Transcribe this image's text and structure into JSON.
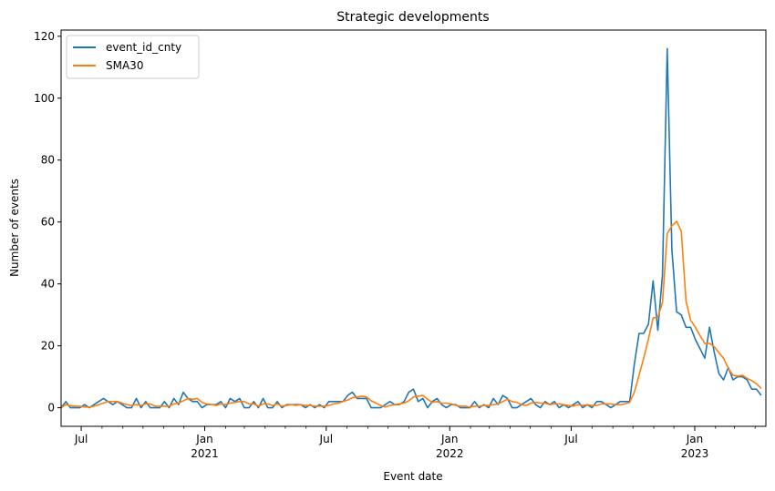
{
  "chart_data": {
    "type": "line",
    "title": "Strategic developments",
    "xlabel": "Event date",
    "ylabel": "Number of events",
    "x_range": [
      "2020-06-01",
      "2023-04-17"
    ],
    "ylim": [
      -6,
      122
    ],
    "yticks": [
      0,
      20,
      40,
      60,
      80,
      100,
      120
    ],
    "xticks": [
      {
        "date": "2020-07-01",
        "label": "Jul",
        "sub": ""
      },
      {
        "date": "2021-01-01",
        "label": "Jan",
        "sub": "2021"
      },
      {
        "date": "2021-07-01",
        "label": "Jul",
        "sub": ""
      },
      {
        "date": "2022-01-01",
        "label": "Jan",
        "sub": "2022"
      },
      {
        "date": "2022-07-01",
        "label": "Jul",
        "sub": ""
      },
      {
        "date": "2023-01-01",
        "label": "Jan",
        "sub": "2023"
      }
    ],
    "minor_ticks": [
      "2020-08-01",
      "2020-09-01",
      "2020-10-01",
      "2020-11-01",
      "2020-12-01",
      "2021-02-01",
      "2021-03-01",
      "2021-04-01",
      "2021-05-01",
      "2021-06-01",
      "2021-08-01",
      "2021-09-01",
      "2021-10-01",
      "2021-11-01",
      "2021-12-01",
      "2022-02-01",
      "2022-03-01",
      "2022-04-01",
      "2022-05-01",
      "2022-06-01",
      "2022-08-01",
      "2022-09-01",
      "2022-10-01",
      "2022-11-01",
      "2022-12-01",
      "2023-02-01",
      "2023-03-01",
      "2023-04-01"
    ],
    "grid": false,
    "legend_position": "top-left",
    "series": [
      {
        "name": "event_id_cnty",
        "color": "#1f77b4",
        "points": [
          [
            "2020-06-01",
            0
          ],
          [
            "2020-06-08",
            2
          ],
          [
            "2020-06-15",
            0
          ],
          [
            "2020-06-22",
            0
          ],
          [
            "2020-06-29",
            0
          ],
          [
            "2020-07-06",
            1
          ],
          [
            "2020-07-13",
            0
          ],
          [
            "2020-07-20",
            1
          ],
          [
            "2020-07-27",
            2
          ],
          [
            "2020-08-03",
            3
          ],
          [
            "2020-08-10",
            2
          ],
          [
            "2020-08-17",
            1
          ],
          [
            "2020-08-24",
            2
          ],
          [
            "2020-08-31",
            1
          ],
          [
            "2020-09-07",
            0
          ],
          [
            "2020-09-14",
            0
          ],
          [
            "2020-09-21",
            3
          ],
          [
            "2020-09-28",
            0
          ],
          [
            "2020-10-05",
            2
          ],
          [
            "2020-10-12",
            0
          ],
          [
            "2020-10-19",
            0
          ],
          [
            "2020-10-26",
            0
          ],
          [
            "2020-11-02",
            2
          ],
          [
            "2020-11-09",
            0
          ],
          [
            "2020-11-16",
            3
          ],
          [
            "2020-11-23",
            1
          ],
          [
            "2020-11-30",
            5
          ],
          [
            "2020-12-07",
            3
          ],
          [
            "2020-12-14",
            2
          ],
          [
            "2020-12-21",
            2
          ],
          [
            "2020-12-28",
            0
          ],
          [
            "2021-01-04",
            1
          ],
          [
            "2021-01-11",
            1
          ],
          [
            "2021-01-18",
            1
          ],
          [
            "2021-01-25",
            2
          ],
          [
            "2021-02-01",
            0
          ],
          [
            "2021-02-08",
            3
          ],
          [
            "2021-02-15",
            2
          ],
          [
            "2021-02-22",
            3
          ],
          [
            "2021-03-01",
            0
          ],
          [
            "2021-03-08",
            0
          ],
          [
            "2021-03-15",
            2
          ],
          [
            "2021-03-22",
            0
          ],
          [
            "2021-03-29",
            3
          ],
          [
            "2021-04-05",
            0
          ],
          [
            "2021-04-12",
            0
          ],
          [
            "2021-04-19",
            2
          ],
          [
            "2021-04-26",
            0
          ],
          [
            "2021-05-03",
            1
          ],
          [
            "2021-05-10",
            1
          ],
          [
            "2021-05-17",
            1
          ],
          [
            "2021-05-24",
            1
          ],
          [
            "2021-05-31",
            0
          ],
          [
            "2021-06-07",
            1
          ],
          [
            "2021-06-14",
            0
          ],
          [
            "2021-06-21",
            1
          ],
          [
            "2021-06-28",
            0
          ],
          [
            "2021-07-05",
            2
          ],
          [
            "2021-07-12",
            2
          ],
          [
            "2021-07-19",
            2
          ],
          [
            "2021-07-26",
            2
          ],
          [
            "2021-08-02",
            4
          ],
          [
            "2021-08-09",
            5
          ],
          [
            "2021-08-16",
            3
          ],
          [
            "2021-08-23",
            3
          ],
          [
            "2021-08-30",
            3
          ],
          [
            "2021-09-06",
            0
          ],
          [
            "2021-09-13",
            0
          ],
          [
            "2021-09-20",
            0
          ],
          [
            "2021-09-27",
            1
          ],
          [
            "2021-10-04",
            2
          ],
          [
            "2021-10-11",
            1
          ],
          [
            "2021-10-18",
            1
          ],
          [
            "2021-10-25",
            2
          ],
          [
            "2021-11-01",
            5
          ],
          [
            "2021-11-08",
            6
          ],
          [
            "2021-11-15",
            2
          ],
          [
            "2021-11-22",
            3
          ],
          [
            "2021-11-29",
            0
          ],
          [
            "2021-12-06",
            2
          ],
          [
            "2021-12-13",
            3
          ],
          [
            "2021-12-20",
            1
          ],
          [
            "2021-12-27",
            0
          ],
          [
            "2022-01-03",
            1
          ],
          [
            "2022-01-10",
            1
          ],
          [
            "2022-01-17",
            0
          ],
          [
            "2022-01-24",
            0
          ],
          [
            "2022-01-31",
            0
          ],
          [
            "2022-02-07",
            2
          ],
          [
            "2022-02-14",
            0
          ],
          [
            "2022-02-21",
            1
          ],
          [
            "2022-02-28",
            0
          ],
          [
            "2022-03-07",
            3
          ],
          [
            "2022-03-14",
            1
          ],
          [
            "2022-03-21",
            4
          ],
          [
            "2022-03-28",
            3
          ],
          [
            "2022-04-04",
            0
          ],
          [
            "2022-04-11",
            0
          ],
          [
            "2022-04-18",
            1
          ],
          [
            "2022-04-25",
            2
          ],
          [
            "2022-05-02",
            3
          ],
          [
            "2022-05-09",
            1
          ],
          [
            "2022-05-16",
            0
          ],
          [
            "2022-05-23",
            2
          ],
          [
            "2022-05-30",
            1
          ],
          [
            "2022-06-06",
            2
          ],
          [
            "2022-06-13",
            0
          ],
          [
            "2022-06-20",
            1
          ],
          [
            "2022-06-27",
            0
          ],
          [
            "2022-07-04",
            1
          ],
          [
            "2022-07-11",
            2
          ],
          [
            "2022-07-18",
            0
          ],
          [
            "2022-07-25",
            1
          ],
          [
            "2022-08-01",
            0
          ],
          [
            "2022-08-08",
            2
          ],
          [
            "2022-08-15",
            2
          ],
          [
            "2022-08-22",
            1
          ],
          [
            "2022-08-29",
            0
          ],
          [
            "2022-09-05",
            1
          ],
          [
            "2022-09-12",
            2
          ],
          [
            "2022-09-19",
            2
          ],
          [
            "2022-09-26",
            2
          ],
          [
            "2022-10-03",
            14
          ],
          [
            "2022-10-10",
            24
          ],
          [
            "2022-10-17",
            24
          ],
          [
            "2022-10-24",
            27
          ],
          [
            "2022-10-31",
            41
          ],
          [
            "2022-11-07",
            25
          ],
          [
            "2022-11-14",
            43
          ],
          [
            "2022-11-21",
            116
          ],
          [
            "2022-11-28",
            51
          ],
          [
            "2022-12-05",
            31
          ],
          [
            "2022-12-12",
            30
          ],
          [
            "2022-12-19",
            26
          ],
          [
            "2022-12-26",
            26
          ],
          [
            "2023-01-02",
            22
          ],
          [
            "2023-01-09",
            19
          ],
          [
            "2023-01-16",
            16
          ],
          [
            "2023-01-23",
            26
          ],
          [
            "2023-01-30",
            18
          ],
          [
            "2023-02-06",
            11
          ],
          [
            "2023-02-13",
            9
          ],
          [
            "2023-02-20",
            13
          ],
          [
            "2023-02-27",
            9
          ],
          [
            "2023-03-06",
            10
          ],
          [
            "2023-03-13",
            10
          ],
          [
            "2023-03-20",
            9
          ],
          [
            "2023-03-27",
            6
          ],
          [
            "2023-04-03",
            6
          ],
          [
            "2023-04-10",
            4
          ]
        ]
      },
      {
        "name": "SMA30",
        "color": "#ff7f0e",
        "points": []
      }
    ]
  }
}
